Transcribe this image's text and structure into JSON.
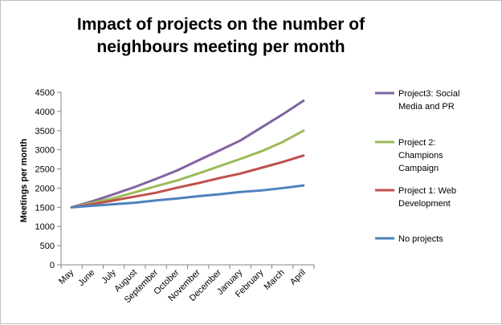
{
  "chart_data": {
    "type": "line",
    "title_lines": [
      "Impact of projects on the number of",
      "neighbours meeting per month"
    ],
    "title": "Impact of projects on the number of neighbours meeting per month",
    "xlabel": "",
    "ylabel": "Meetings per month",
    "ylim": [
      0,
      4500
    ],
    "yticks": [
      0,
      500,
      1000,
      1500,
      2000,
      2500,
      3000,
      3500,
      4000,
      4500
    ],
    "categories": [
      "May",
      "June",
      "July",
      "August",
      "September",
      "October",
      "November",
      "December",
      "January",
      "February",
      "March",
      "April"
    ],
    "grid": false,
    "legend_position": "right",
    "series": [
      {
        "name": "Project3: Social Media and PR",
        "legend_lines": [
          "Project3: Social",
          "Media and PR"
        ],
        "color": "#8064a2",
        "values": [
          1500,
          1660,
          1840,
          2030,
          2240,
          2460,
          2720,
          2980,
          3240,
          3580,
          3920,
          4280
        ]
      },
      {
        "name": "Project 2: Champions Campaign",
        "legend_lines": [
          "Project 2:",
          "Champions",
          "Campaign"
        ],
        "color": "#9bbb59",
        "values": [
          1500,
          1620,
          1740,
          1890,
          2050,
          2200,
          2380,
          2570,
          2760,
          2960,
          3200,
          3500
        ]
      },
      {
        "name": "Project 1: Web Development",
        "legend_lines": [
          "Project 1: Web",
          "Development"
        ],
        "color": "#c0504d",
        "values": [
          1500,
          1580,
          1680,
          1780,
          1880,
          2010,
          2130,
          2260,
          2380,
          2530,
          2680,
          2850
        ]
      },
      {
        "name": "No projects",
        "legend_lines": [
          "No projects"
        ],
        "color": "#4f81bd",
        "values": [
          1500,
          1540,
          1580,
          1620,
          1680,
          1730,
          1790,
          1840,
          1900,
          1940,
          2000,
          2070
        ]
      }
    ]
  }
}
